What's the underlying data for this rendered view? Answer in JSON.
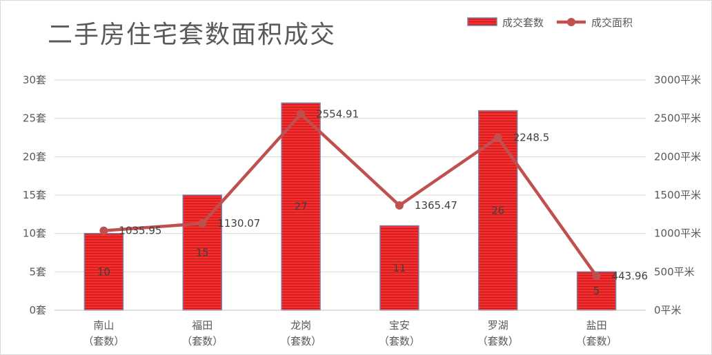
{
  "chart_data": {
    "type": "bar",
    "title": "二手房住宅套数面积成交",
    "categories": [
      [
        "南山",
        "（套数）"
      ],
      [
        "福田",
        "（套数）"
      ],
      [
        "龙岗",
        "（套数）"
      ],
      [
        "宝安",
        "（套数）"
      ],
      [
        "罗湖",
        "（套数）"
      ],
      [
        "盐田",
        "（套数）"
      ]
    ],
    "series": [
      {
        "name": "成交套数",
        "type": "bar",
        "axis": "left",
        "values": [
          10,
          15,
          27,
          11,
          26,
          5
        ]
      },
      {
        "name": "成交面积",
        "type": "line",
        "axis": "right",
        "values": [
          1035.95,
          1130.07,
          2554.91,
          1365.47,
          2248.5,
          443.96
        ]
      }
    ],
    "y_left": {
      "min": 0,
      "max": 30,
      "step": 5,
      "unit": "套"
    },
    "y_right": {
      "min": 0,
      "max": 3000,
      "step": 500,
      "unit": "平米"
    },
    "grid": true,
    "legend": "top-right",
    "colors": {
      "bar_fill": "#ff2a2a",
      "bar_stripe": "#b22222",
      "bar_border": "#7f7fa6",
      "line": "#c0504d",
      "grid": "#d9d9d9",
      "text": "#595959"
    }
  }
}
